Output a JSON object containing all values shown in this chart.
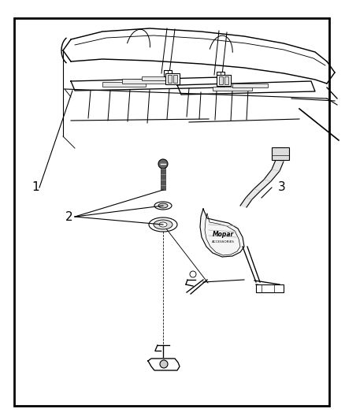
{
  "bg_color": "#ffffff",
  "border_color": "#000000",
  "border_linewidth": 2.0,
  "fig_width": 4.38,
  "fig_height": 5.33,
  "fig_dpi": 100,
  "label1_text": "1",
  "label2_text": "2",
  "label3_text": "3",
  "line_color": "#000000"
}
